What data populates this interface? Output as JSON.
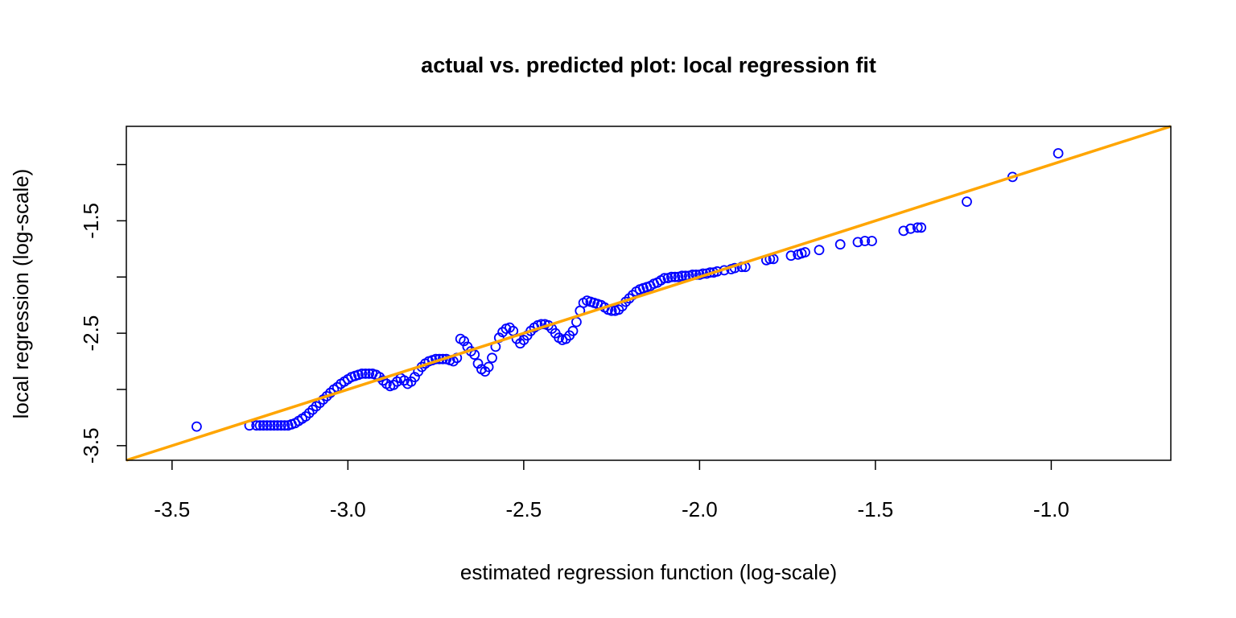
{
  "chart_data": {
    "type": "scatter",
    "title": "actual vs. predicted plot: local regression fit",
    "xlabel": "estimated regression function (log-scale)",
    "ylabel": "local regression (log-scale)",
    "xlim": [
      -3.63,
      -0.66
    ],
    "ylim": [
      -3.63,
      -0.66
    ],
    "x_ticks": [
      -3.5,
      -3.0,
      -2.5,
      -2.0,
      -1.5,
      -1.0
    ],
    "x_tick_labels": [
      "-3.5",
      "-3.0",
      "-2.5",
      "-2.0",
      "-1.5",
      "-1.0"
    ],
    "y_ticks": [
      -3.5,
      -3.0,
      -2.5,
      -2.0,
      -1.5,
      -1.0
    ],
    "y_tick_labels": [
      "-3.5",
      "",
      "-2.5",
      "",
      "-1.5",
      ""
    ],
    "grid": false,
    "point_color": "#0000ff",
    "line_color": "#ffa500",
    "reference_line": {
      "type": "identity",
      "slope": 1,
      "intercept": 0
    },
    "points": [
      [
        -3.43,
        -3.33
      ],
      [
        -3.28,
        -3.32
      ],
      [
        -3.26,
        -3.32
      ],
      [
        -3.25,
        -3.32
      ],
      [
        -3.24,
        -3.32
      ],
      [
        -3.23,
        -3.32
      ],
      [
        -3.22,
        -3.32
      ],
      [
        -3.21,
        -3.32
      ],
      [
        -3.2,
        -3.32
      ],
      [
        -3.19,
        -3.32
      ],
      [
        -3.18,
        -3.32
      ],
      [
        -3.17,
        -3.32
      ],
      [
        -3.16,
        -3.31
      ],
      [
        -3.15,
        -3.3
      ],
      [
        -3.14,
        -3.28
      ],
      [
        -3.13,
        -3.26
      ],
      [
        -3.12,
        -3.24
      ],
      [
        -3.11,
        -3.21
      ],
      [
        -3.1,
        -3.18
      ],
      [
        -3.09,
        -3.15
      ],
      [
        -3.08,
        -3.12
      ],
      [
        -3.07,
        -3.09
      ],
      [
        -3.06,
        -3.06
      ],
      [
        -3.05,
        -3.03
      ],
      [
        -3.04,
        -3.0
      ],
      [
        -3.03,
        -2.98
      ],
      [
        -3.02,
        -2.95
      ],
      [
        -3.01,
        -2.93
      ],
      [
        -3.0,
        -2.91
      ],
      [
        -2.99,
        -2.89
      ],
      [
        -2.98,
        -2.88
      ],
      [
        -2.97,
        -2.87
      ],
      [
        -2.96,
        -2.86
      ],
      [
        -2.95,
        -2.86
      ],
      [
        -2.94,
        -2.86
      ],
      [
        -2.93,
        -2.86
      ],
      [
        -2.92,
        -2.87
      ],
      [
        -2.91,
        -2.89
      ],
      [
        -2.9,
        -2.92
      ],
      [
        -2.89,
        -2.95
      ],
      [
        -2.88,
        -2.97
      ],
      [
        -2.87,
        -2.96
      ],
      [
        -2.86,
        -2.93
      ],
      [
        -2.85,
        -2.9
      ],
      [
        -2.84,
        -2.92
      ],
      [
        -2.83,
        -2.95
      ],
      [
        -2.82,
        -2.93
      ],
      [
        -2.81,
        -2.89
      ],
      [
        -2.8,
        -2.84
      ],
      [
        -2.79,
        -2.8
      ],
      [
        -2.78,
        -2.77
      ],
      [
        -2.77,
        -2.75
      ],
      [
        -2.76,
        -2.74
      ],
      [
        -2.75,
        -2.73
      ],
      [
        -2.74,
        -2.73
      ],
      [
        -2.73,
        -2.73
      ],
      [
        -2.72,
        -2.73
      ],
      [
        -2.71,
        -2.74
      ],
      [
        -2.7,
        -2.75
      ],
      [
        -2.69,
        -2.72
      ],
      [
        -2.68,
        -2.55
      ],
      [
        -2.67,
        -2.57
      ],
      [
        -2.66,
        -2.62
      ],
      [
        -2.65,
        -2.66
      ],
      [
        -2.64,
        -2.69
      ],
      [
        -2.63,
        -2.77
      ],
      [
        -2.62,
        -2.82
      ],
      [
        -2.61,
        -2.84
      ],
      [
        -2.6,
        -2.8
      ],
      [
        -2.59,
        -2.72
      ],
      [
        -2.58,
        -2.62
      ],
      [
        -2.57,
        -2.54
      ],
      [
        -2.56,
        -2.49
      ],
      [
        -2.55,
        -2.46
      ],
      [
        -2.54,
        -2.45
      ],
      [
        -2.53,
        -2.48
      ],
      [
        -2.52,
        -2.55
      ],
      [
        -2.51,
        -2.59
      ],
      [
        -2.5,
        -2.56
      ],
      [
        -2.49,
        -2.52
      ],
      [
        -2.48,
        -2.48
      ],
      [
        -2.47,
        -2.45
      ],
      [
        -2.46,
        -2.43
      ],
      [
        -2.45,
        -2.42
      ],
      [
        -2.44,
        -2.42
      ],
      [
        -2.43,
        -2.43
      ],
      [
        -2.42,
        -2.46
      ],
      [
        -2.41,
        -2.5
      ],
      [
        -2.4,
        -2.54
      ],
      [
        -2.39,
        -2.56
      ],
      [
        -2.38,
        -2.55
      ],
      [
        -2.37,
        -2.52
      ],
      [
        -2.36,
        -2.48
      ],
      [
        -2.35,
        -2.4
      ],
      [
        -2.34,
        -2.3
      ],
      [
        -2.33,
        -2.23
      ],
      [
        -2.32,
        -2.21
      ],
      [
        -2.31,
        -2.22
      ],
      [
        -2.3,
        -2.23
      ],
      [
        -2.29,
        -2.24
      ],
      [
        -2.28,
        -2.25
      ],
      [
        -2.27,
        -2.27
      ],
      [
        -2.26,
        -2.29
      ],
      [
        -2.25,
        -2.3
      ],
      [
        -2.24,
        -2.3
      ],
      [
        -2.23,
        -2.29
      ],
      [
        -2.22,
        -2.26
      ],
      [
        -2.21,
        -2.22
      ],
      [
        -2.2,
        -2.19
      ],
      [
        -2.19,
        -2.16
      ],
      [
        -2.18,
        -2.13
      ],
      [
        -2.17,
        -2.11
      ],
      [
        -2.16,
        -2.1
      ],
      [
        -2.15,
        -2.09
      ],
      [
        -2.14,
        -2.08
      ],
      [
        -2.13,
        -2.06
      ],
      [
        -2.12,
        -2.05
      ],
      [
        -2.11,
        -2.03
      ],
      [
        -2.1,
        -2.01
      ],
      [
        -2.09,
        -2.01
      ],
      [
        -2.08,
        -2.0
      ],
      [
        -2.07,
        -2.0
      ],
      [
        -2.06,
        -2.0
      ],
      [
        -2.05,
        -1.99
      ],
      [
        -2.04,
        -1.99
      ],
      [
        -2.03,
        -1.99
      ],
      [
        -2.02,
        -1.98
      ],
      [
        -2.01,
        -1.98
      ],
      [
        -2.0,
        -1.98
      ],
      [
        -1.99,
        -1.97
      ],
      [
        -1.98,
        -1.97
      ],
      [
        -1.97,
        -1.96
      ],
      [
        -1.96,
        -1.96
      ],
      [
        -1.95,
        -1.95
      ],
      [
        -1.93,
        -1.94
      ],
      [
        -1.91,
        -1.93
      ],
      [
        -1.9,
        -1.92
      ],
      [
        -1.88,
        -1.91
      ],
      [
        -1.87,
        -1.91
      ],
      [
        -1.81,
        -1.85
      ],
      [
        -1.8,
        -1.84
      ],
      [
        -1.79,
        -1.84
      ],
      [
        -1.74,
        -1.81
      ],
      [
        -1.72,
        -1.8
      ],
      [
        -1.71,
        -1.79
      ],
      [
        -1.7,
        -1.78
      ],
      [
        -1.66,
        -1.76
      ],
      [
        -1.6,
        -1.71
      ],
      [
        -1.55,
        -1.69
      ],
      [
        -1.53,
        -1.68
      ],
      [
        -1.51,
        -1.68
      ],
      [
        -1.42,
        -1.59
      ],
      [
        -1.4,
        -1.57
      ],
      [
        -1.38,
        -1.56
      ],
      [
        -1.37,
        -1.56
      ],
      [
        -1.24,
        -1.33
      ],
      [
        -1.11,
        -1.11
      ],
      [
        -0.98,
        -0.9
      ]
    ]
  }
}
